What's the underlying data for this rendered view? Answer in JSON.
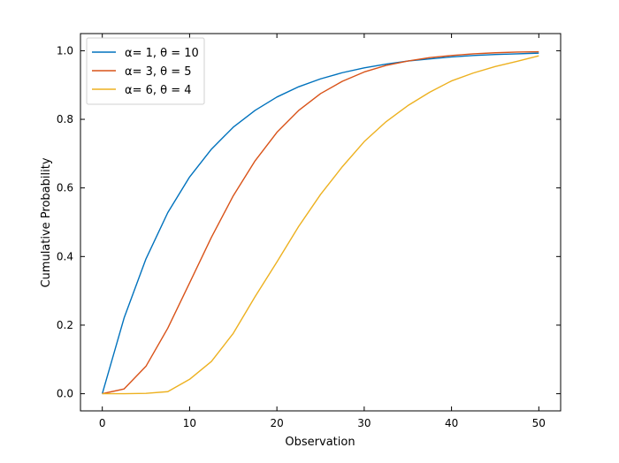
{
  "chart_data": {
    "type": "line",
    "xlabel": "Observation",
    "ylabel": "Cumulative Probability",
    "xlim": [
      -2.5,
      52.5
    ],
    "ylim": [
      -0.05,
      1.05
    ],
    "xticks": [
      0,
      10,
      20,
      30,
      40,
      50
    ],
    "yticks": [
      0.0,
      0.2,
      0.4,
      0.6,
      0.8,
      1.0
    ],
    "ytick_labels": [
      "0.0",
      "0.2",
      "0.4",
      "0.6",
      "0.8",
      "1.0"
    ],
    "xtick_labels": [
      "0",
      "10",
      "20",
      "30",
      "40",
      "50"
    ],
    "grid": false,
    "legend_position": "top-left",
    "x": [
      0,
      2.5,
      5,
      7.5,
      10,
      12.5,
      15,
      17.5,
      20,
      22.5,
      25,
      27.5,
      30,
      32.5,
      35,
      37.5,
      40,
      42.5,
      45,
      47.5,
      50
    ],
    "series": [
      {
        "name": "α= 1, θ = 10",
        "color": "#0072bd",
        "values": [
          0.0,
          0.221,
          0.393,
          0.528,
          0.632,
          0.713,
          0.777,
          0.826,
          0.865,
          0.895,
          0.918,
          0.936,
          0.95,
          0.961,
          0.97,
          0.976,
          0.982,
          0.986,
          0.989,
          0.991,
          0.993
        ]
      },
      {
        "name": "α= 3, θ = 5",
        "color": "#d95319",
        "values": [
          0.0,
          0.014,
          0.08,
          0.191,
          0.323,
          0.456,
          0.577,
          0.679,
          0.762,
          0.826,
          0.875,
          0.911,
          0.938,
          0.957,
          0.97,
          0.98,
          0.986,
          0.991,
          0.994,
          0.996,
          0.997
        ]
      },
      {
        "name": "α= 6, θ = 4",
        "color": "#edb120",
        "values": [
          0.0,
          0.0,
          0.001,
          0.006,
          0.042,
          0.094,
          0.176,
          0.283,
          0.384,
          0.488,
          0.581,
          0.662,
          0.735,
          0.793,
          0.84,
          0.879,
          0.912,
          0.935,
          0.954,
          0.969,
          0.985
        ]
      }
    ]
  }
}
